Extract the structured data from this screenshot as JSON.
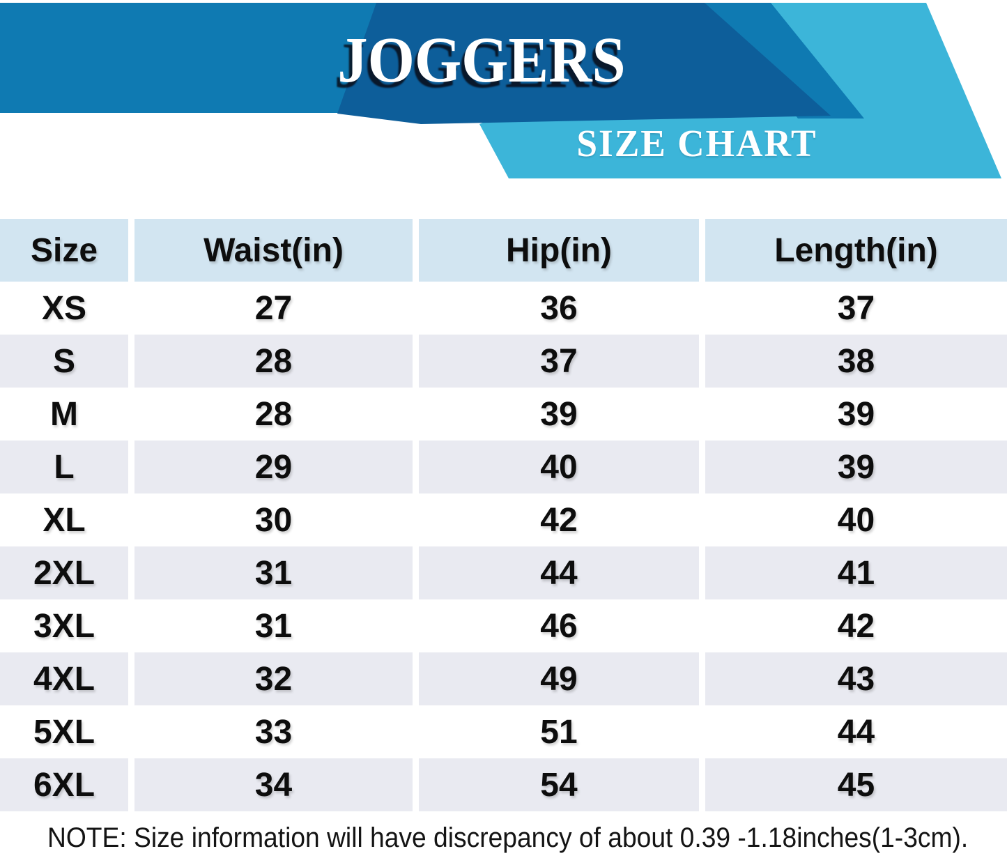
{
  "header": {
    "title": "JOGGERS",
    "subtitle": "SIZE CHART"
  },
  "colors": {
    "banner_blue": "#0f7ab2",
    "dark_blue": "#0d5e9a",
    "light_blue": "#3cb5d9",
    "header_cell_blue": "#d2e5f1",
    "alt_row_gray": "#e9eaf1",
    "title_text": "#ffffff",
    "body_text": "#0d0d0d"
  },
  "table": {
    "columns": [
      "Size",
      "Waist(in)",
      "Hip(in)",
      "Length(in)"
    ],
    "rows": [
      {
        "size": "XS",
        "waist": "27",
        "hip": "36",
        "length": "37"
      },
      {
        "size": "S",
        "waist": "28",
        "hip": "37",
        "length": "38"
      },
      {
        "size": "M",
        "waist": "28",
        "hip": "39",
        "length": "39"
      },
      {
        "size": "L",
        "waist": "29",
        "hip": "40",
        "length": "39"
      },
      {
        "size": "XL",
        "waist": "30",
        "hip": "42",
        "length": "40"
      },
      {
        "size": "2XL",
        "waist": "31",
        "hip": "44",
        "length": "41"
      },
      {
        "size": "3XL",
        "waist": "31",
        "hip": "46",
        "length": "42"
      },
      {
        "size": "4XL",
        "waist": "32",
        "hip": "49",
        "length": "43"
      },
      {
        "size": "5XL",
        "waist": "33",
        "hip": "51",
        "length": "44"
      },
      {
        "size": "6XL",
        "waist": "34",
        "hip": "54",
        "length": "45"
      }
    ]
  },
  "note": "NOTE: Size information will have discrepancy of about 0.39 -1.18inches(1-3cm)."
}
